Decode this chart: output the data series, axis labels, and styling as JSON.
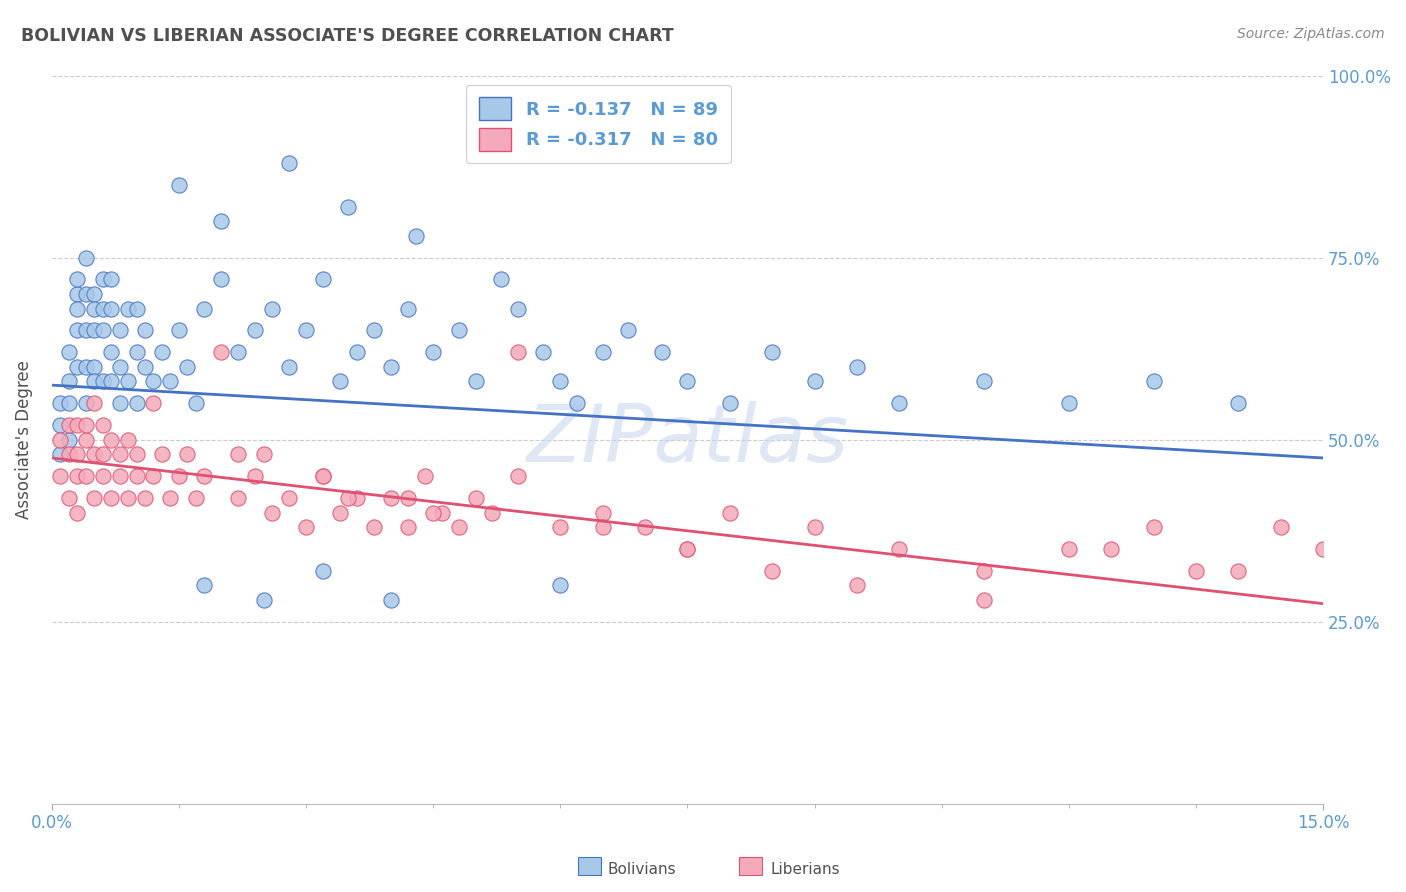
{
  "title": "BOLIVIAN VS LIBERIAN ASSOCIATE'S DEGREE CORRELATION CHART",
  "source": "Source: ZipAtlas.com",
  "ylabel": "Associate's Degree",
  "xlim": [
    0.0,
    0.15
  ],
  "ylim": [
    0.0,
    1.0
  ],
  "bolivia_color": "#A8C8E8",
  "liberia_color": "#F4AABA",
  "bolivia_line_color": "#4472C4",
  "liberia_line_color": "#E05070",
  "watermark": "ZIPatlas",
  "bolivia_x": [
    0.001,
    0.001,
    0.001,
    0.002,
    0.002,
    0.002,
    0.002,
    0.003,
    0.003,
    0.003,
    0.003,
    0.003,
    0.004,
    0.004,
    0.004,
    0.004,
    0.004,
    0.005,
    0.005,
    0.005,
    0.005,
    0.005,
    0.006,
    0.006,
    0.006,
    0.006,
    0.007,
    0.007,
    0.007,
    0.007,
    0.008,
    0.008,
    0.008,
    0.009,
    0.009,
    0.01,
    0.01,
    0.01,
    0.011,
    0.011,
    0.012,
    0.013,
    0.014,
    0.015,
    0.016,
    0.017,
    0.018,
    0.02,
    0.022,
    0.024,
    0.026,
    0.028,
    0.03,
    0.032,
    0.034,
    0.036,
    0.038,
    0.04,
    0.042,
    0.045,
    0.048,
    0.05,
    0.053,
    0.055,
    0.058,
    0.06,
    0.062,
    0.065,
    0.068,
    0.072,
    0.075,
    0.08,
    0.085,
    0.09,
    0.095,
    0.1,
    0.11,
    0.12,
    0.13,
    0.14,
    0.035,
    0.028,
    0.043,
    0.015,
    0.02,
    0.018,
    0.025,
    0.032,
    0.04,
    0.06
  ],
  "bolivia_y": [
    0.52,
    0.55,
    0.48,
    0.58,
    0.62,
    0.55,
    0.5,
    0.65,
    0.7,
    0.6,
    0.68,
    0.72,
    0.55,
    0.6,
    0.65,
    0.7,
    0.75,
    0.6,
    0.65,
    0.7,
    0.58,
    0.68,
    0.58,
    0.65,
    0.72,
    0.68,
    0.58,
    0.62,
    0.68,
    0.72,
    0.55,
    0.6,
    0.65,
    0.58,
    0.68,
    0.62,
    0.55,
    0.68,
    0.6,
    0.65,
    0.58,
    0.62,
    0.58,
    0.65,
    0.6,
    0.55,
    0.68,
    0.72,
    0.62,
    0.65,
    0.68,
    0.6,
    0.65,
    0.72,
    0.58,
    0.62,
    0.65,
    0.6,
    0.68,
    0.62,
    0.65,
    0.58,
    0.72,
    0.68,
    0.62,
    0.58,
    0.55,
    0.62,
    0.65,
    0.62,
    0.58,
    0.55,
    0.62,
    0.58,
    0.6,
    0.55,
    0.58,
    0.55,
    0.58,
    0.55,
    0.82,
    0.88,
    0.78,
    0.85,
    0.8,
    0.3,
    0.28,
    0.32,
    0.28,
    0.3
  ],
  "liberia_x": [
    0.001,
    0.001,
    0.002,
    0.002,
    0.002,
    0.003,
    0.003,
    0.003,
    0.003,
    0.004,
    0.004,
    0.004,
    0.005,
    0.005,
    0.005,
    0.006,
    0.006,
    0.006,
    0.007,
    0.007,
    0.008,
    0.008,
    0.009,
    0.009,
    0.01,
    0.01,
    0.011,
    0.012,
    0.013,
    0.014,
    0.015,
    0.016,
    0.017,
    0.018,
    0.02,
    0.022,
    0.024,
    0.026,
    0.028,
    0.03,
    0.032,
    0.034,
    0.036,
    0.038,
    0.04,
    0.042,
    0.044,
    0.046,
    0.048,
    0.05,
    0.055,
    0.06,
    0.065,
    0.07,
    0.075,
    0.08,
    0.09,
    0.1,
    0.11,
    0.12,
    0.13,
    0.14,
    0.15,
    0.025,
    0.035,
    0.045,
    0.055,
    0.065,
    0.075,
    0.085,
    0.095,
    0.11,
    0.125,
    0.135,
    0.145,
    0.012,
    0.022,
    0.032,
    0.042,
    0.052
  ],
  "liberia_y": [
    0.5,
    0.45,
    0.52,
    0.48,
    0.42,
    0.48,
    0.52,
    0.45,
    0.4,
    0.5,
    0.45,
    0.52,
    0.48,
    0.42,
    0.55,
    0.45,
    0.52,
    0.48,
    0.42,
    0.5,
    0.45,
    0.48,
    0.42,
    0.5,
    0.45,
    0.48,
    0.42,
    0.45,
    0.48,
    0.42,
    0.45,
    0.48,
    0.42,
    0.45,
    0.62,
    0.42,
    0.45,
    0.4,
    0.42,
    0.38,
    0.45,
    0.4,
    0.42,
    0.38,
    0.42,
    0.38,
    0.45,
    0.4,
    0.38,
    0.42,
    0.62,
    0.38,
    0.4,
    0.38,
    0.35,
    0.4,
    0.38,
    0.35,
    0.32,
    0.35,
    0.38,
    0.32,
    0.35,
    0.48,
    0.42,
    0.4,
    0.45,
    0.38,
    0.35,
    0.32,
    0.3,
    0.28,
    0.35,
    0.32,
    0.38,
    0.55,
    0.48,
    0.45,
    0.42,
    0.4
  ],
  "background_color": "#FFFFFF",
  "grid_color": "#CCCCCC",
  "title_color": "#505050",
  "axis_color": "#5B9BD5",
  "tick_label_color": "#5B9BD5",
  "source_color": "#888888"
}
